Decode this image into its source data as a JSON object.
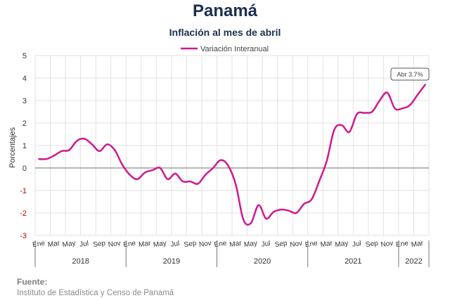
{
  "header": {
    "title": "Panamá",
    "subtitle": "Inflación al mes de abril"
  },
  "footer": {
    "source_label": "Fuente:",
    "source_text": "Instituto de Estadística y Censo de Panamá"
  },
  "chart_data": {
    "type": "line",
    "ylabel": "Porcentajes",
    "ylim": [
      -3,
      5
    ],
    "yticks": [
      5,
      4,
      3,
      2,
      1,
      0,
      -1,
      -2,
      -3
    ],
    "grid": true,
    "legend": "top-center",
    "line_color": "#d0198f",
    "x_month_ticks": [
      "Ene",
      "Mar",
      "May",
      "Jul",
      "Sep",
      "Nov",
      "Ene",
      "Mar",
      "May",
      "Jul",
      "Sep",
      "Nov",
      "Ene",
      "Mar",
      "May",
      "Jul",
      "Sep",
      "Nov",
      "Ene",
      "Mar",
      "May",
      "Jul",
      "Sep",
      "Nov",
      "Ene",
      "Mar"
    ],
    "years": [
      "2018",
      "2019",
      "2020",
      "2021",
      "2022"
    ],
    "series": [
      {
        "name": "Variación Interanual",
        "values": [
          0.4,
          0.4,
          0.55,
          0.75,
          0.8,
          1.2,
          1.3,
          1.05,
          0.75,
          1.05,
          0.8,
          0.15,
          -0.3,
          -0.5,
          -0.2,
          -0.1,
          0.0,
          -0.5,
          -0.25,
          -0.6,
          -0.6,
          -0.7,
          -0.3,
          0.0,
          0.35,
          0.1,
          -0.75,
          -2.3,
          -2.45,
          -1.65,
          -2.25,
          -1.95,
          -1.85,
          -1.9,
          -2.0,
          -1.6,
          -1.4,
          -0.6,
          0.3,
          1.7,
          1.9,
          1.6,
          2.4,
          2.45,
          2.5,
          3.0,
          3.35,
          2.65,
          2.65,
          2.8,
          3.25,
          3.7
        ]
      }
    ],
    "annotation": "Abr 3.7%"
  }
}
